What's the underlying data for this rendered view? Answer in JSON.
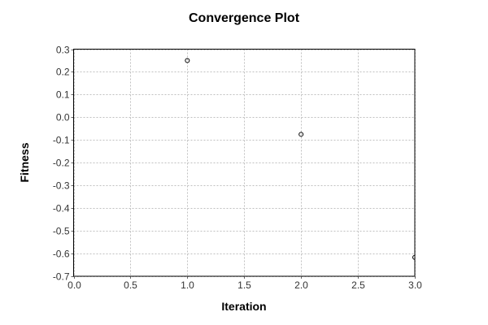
{
  "chart_data": {
    "type": "scatter",
    "title": "Convergence Plot",
    "xlabel": "Iteration",
    "ylabel": "Fitness",
    "xlim": [
      0.0,
      3.0
    ],
    "ylim": [
      -0.7,
      0.3
    ],
    "xticks": [
      "0.0",
      "0.5",
      "1.0",
      "1.5",
      "2.0",
      "2.5",
      "3.0"
    ],
    "yticks": [
      "0.3",
      "0.2",
      "0.1",
      "0.0",
      "-0.1",
      "-0.2",
      "-0.3",
      "-0.4",
      "-0.5",
      "-0.6",
      "-0.7"
    ],
    "grid": true,
    "marker": "open-circle",
    "points": [
      {
        "x": 1.0,
        "y": 0.25
      },
      {
        "x": 2.0,
        "y": -0.075
      },
      {
        "x": 3.0,
        "y": -0.617
      }
    ]
  }
}
